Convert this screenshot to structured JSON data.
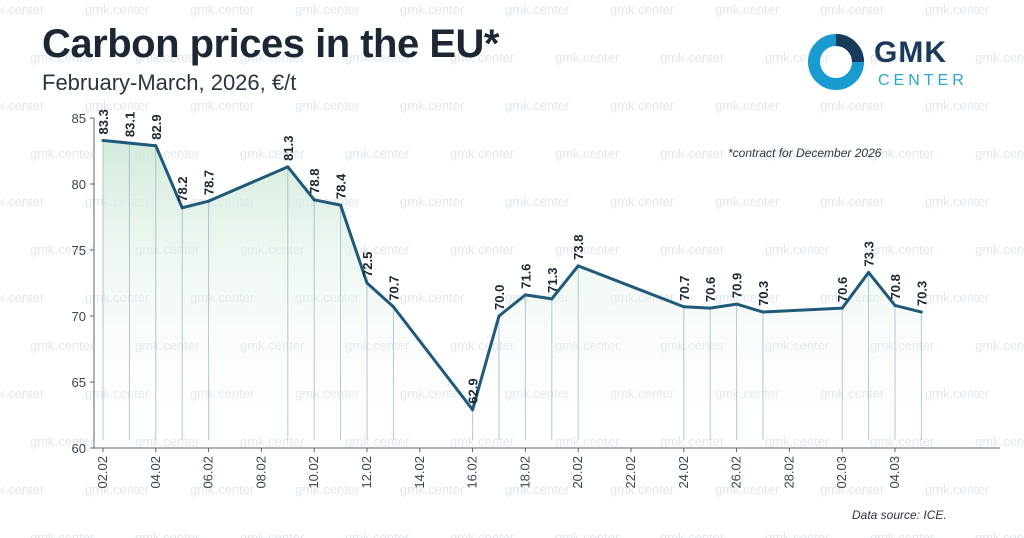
{
  "header": {
    "title": "Carbon prices in the EU*",
    "subtitle": "February-March, 2026, €/t"
  },
  "logo": {
    "word": "GMK",
    "sub": "CENTER"
  },
  "watermark": {
    "text": "gmk.center"
  },
  "footnote": "*contract for December 2026",
  "source": "Data source: ICE.",
  "colors": {
    "line": "#1f5a7a",
    "area_top": "#cfe8d8",
    "logo_ring": "#1a9bd0",
    "logo_text": "#1a3a5c"
  },
  "chart_data": {
    "type": "area",
    "title": "Carbon prices in the EU*",
    "subtitle": "February-March, 2026, €/t",
    "ylim": [
      60,
      85
    ],
    "yticks": [
      "60",
      "65",
      "70",
      "75",
      "80",
      "85"
    ],
    "xticks": [
      "02.02",
      "04.02",
      "06.02",
      "08.02",
      "10.02",
      "12.02",
      "14.02",
      "16.02",
      "18.02",
      "20.02",
      "22.02",
      "24.02",
      "26.02",
      "28.02",
      "02.03",
      "04.03"
    ],
    "grid": false,
    "series": [
      {
        "x": [
          "02.02",
          "03.02",
          "04.02",
          "05.02",
          "06.02",
          "09.02",
          "10.02",
          "11.02",
          "12.02",
          "13.02",
          "16.02",
          "17.02",
          "18.02",
          "19.02",
          "20.02",
          "24.02",
          "25.02",
          "26.02",
          "27.02",
          "02.03",
          "03.03",
          "04.03",
          "05.03"
        ],
        "values": [
          83.3,
          83.1,
          82.9,
          78.2,
          78.7,
          81.3,
          78.8,
          78.4,
          72.5,
          70.7,
          62.9,
          70.0,
          71.6,
          71.3,
          73.8,
          70.7,
          70.6,
          70.9,
          70.3,
          70.6,
          73.3,
          70.8,
          70.3
        ],
        "labels": [
          "83.3",
          "83.1",
          "82.9",
          "78.2",
          "78.7",
          "81.3",
          "78.8",
          "78.4",
          "72.5",
          "70.7",
          "62.9",
          "70.0",
          "71.6",
          "71.3",
          "73.8",
          "70.7",
          "70.6",
          "70.9",
          "70.3",
          "70.6",
          "73.3",
          "70.8",
          "70.3"
        ]
      }
    ]
  }
}
